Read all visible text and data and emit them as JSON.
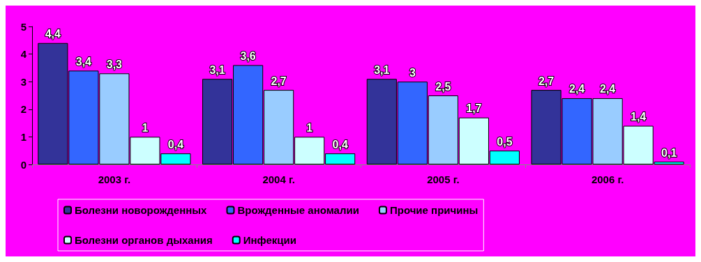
{
  "chart_data": {
    "type": "bar",
    "categories": [
      "2003 г.",
      "2004 г.",
      "2005 г.",
      "2006 г."
    ],
    "series": [
      {
        "name": "Болезни новорожденных",
        "color": "#333399",
        "values": [
          4.4,
          3.1,
          3.1,
          2.7
        ],
        "value_labels": [
          "4,4",
          "3,1",
          "3,1",
          "2,7"
        ]
      },
      {
        "name": "Врожденные аномалии",
        "color": "#3366ff",
        "values": [
          3.4,
          3.6,
          3,
          2.4
        ],
        "value_labels": [
          "3,4",
          "3,6",
          "3",
          "2,4"
        ]
      },
      {
        "name": "Прочие причины",
        "color": "#99ccff",
        "values": [
          3.3,
          2.7,
          2.5,
          2.4
        ],
        "value_labels": [
          "3,3",
          "2,7",
          "2,5",
          "2,4"
        ]
      },
      {
        "name": "Болезни органов дыхания",
        "color": "#ccffff",
        "values": [
          1,
          1,
          1.7,
          1.4
        ],
        "value_labels": [
          "1",
          "1",
          "1,7",
          "1,4"
        ]
      },
      {
        "name": "Инфекции",
        "color": "#00ffff",
        "values": [
          0.4,
          0.4,
          0.5,
          0.1
        ],
        "value_labels": [
          "0,4",
          "0,4",
          "0,5",
          "0,1"
        ]
      }
    ],
    "ylim": [
      0,
      5
    ],
    "yticks": [
      0,
      1,
      2,
      3,
      4,
      5
    ],
    "grid": false,
    "legend": "bottom"
  }
}
